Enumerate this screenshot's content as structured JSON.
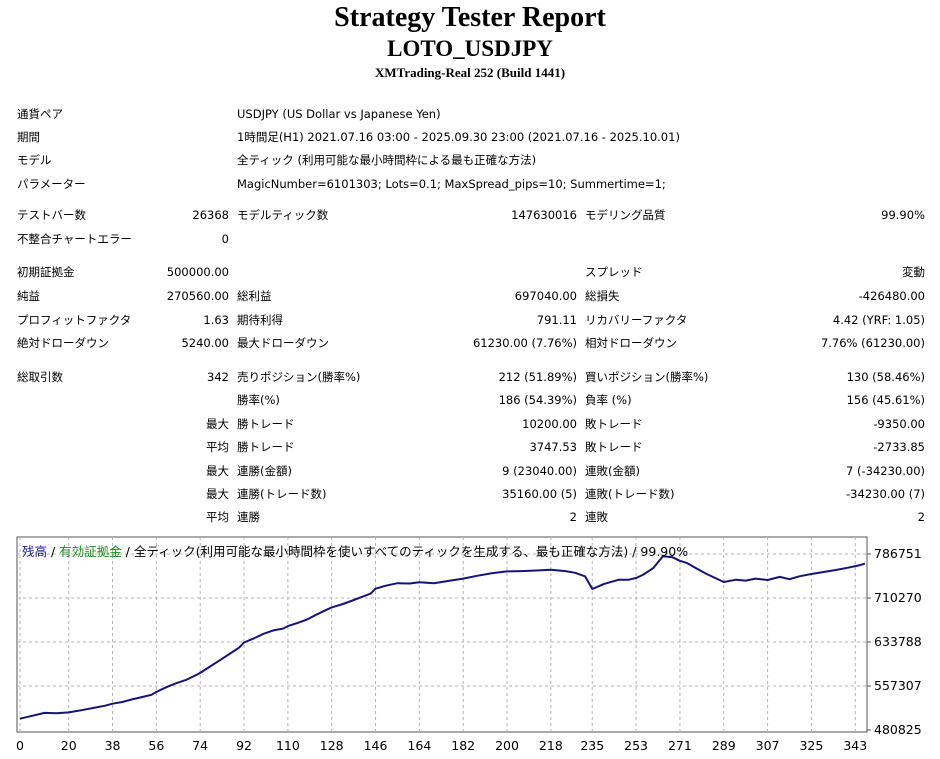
{
  "header": {
    "title": "Strategy Tester Report",
    "subtitle": "LOTO_USDJPY",
    "server": "XMTrading-Real 252 (Build 1441)"
  },
  "info": {
    "pair_label": "通貨ペア",
    "pair_value": "USDJPY (US Dollar vs Japanese Yen)",
    "period_label": "期間",
    "period_value": "1時間足(H1) 2021.07.16 03:00 - 2025.09.30 23:00 (2021.07.16 - 2025.10.01)",
    "model_label": "モデル",
    "model_value": "全ティック (利用可能な最小時間枠による最も正確な方法)",
    "params_label": "パラメーター",
    "params_value": "MagicNumber=6101303; Lots=0.1; MaxSpread_pips=10; Summertime=1;"
  },
  "stats": {
    "bars_label": "テストバー数",
    "bars_value": "26368",
    "ticks_label": "モデルティック数",
    "ticks_value": "147630016",
    "quality_label": "モデリング品質",
    "quality_value": "99.90%",
    "mismatch_label": "不整合チャートエラー",
    "mismatch_value": "0",
    "deposit_label": "初期証拠金",
    "deposit_value": "500000.00",
    "spread_label": "スプレッド",
    "spread_value": "変動",
    "net_label": "純益",
    "net_value": "270560.00",
    "gross_profit_label": "総利益",
    "gross_profit_value": "697040.00",
    "gross_loss_label": "総損失",
    "gross_loss_value": "-426480.00",
    "pf_label": "プロフィットファクタ",
    "pf_value": "1.63",
    "payoff_label": "期待利得",
    "payoff_value": "791.11",
    "recovery_label": "リカバリーファクタ",
    "recovery_value": "4.42 (YRF: 1.05)",
    "abs_dd_label": "絶対ドローダウン",
    "abs_dd_value": "5240.00",
    "max_dd_label": "最大ドローダウン",
    "max_dd_value": "61230.00 (7.76%)",
    "rel_dd_label": "相対ドローダウン",
    "rel_dd_value": "7.76% (61230.00)",
    "trades_label": "総取引数",
    "trades_value": "342",
    "short_label": "売りポジション(勝率%)",
    "short_value": "212 (51.89%)",
    "long_label": "買いポジション(勝率%)",
    "long_value": "130 (58.46%)",
    "win_rate_label": "勝率(%)",
    "win_rate_value": "186 (54.39%)",
    "loss_rate_label": "負率 (%)",
    "loss_rate_value": "156 (45.61%)",
    "max_word": "最大",
    "avg_word": "平均",
    "max_win_label": "勝トレード",
    "max_win_value": "10200.00",
    "max_loss_label": "敗トレード",
    "max_loss_value": "-9350.00",
    "avg_win_label": "勝トレード",
    "avg_win_value": "3747.53",
    "avg_loss_label": "敗トレード",
    "avg_loss_value": "-2733.85",
    "cons_wins_amt_label": "連勝(金額)",
    "cons_wins_amt_value": "9 (23040.00)",
    "cons_losses_amt_label": "連敗(金額)",
    "cons_losses_amt_value": "7 (-34230.00)",
    "cons_wins_cnt_label": "連勝(トレード数)",
    "cons_wins_cnt_value": "35160.00 (5)",
    "cons_losses_cnt_label": "連敗(トレード数)",
    "cons_losses_cnt_value": "-34230.00 (7)",
    "avg_cons_wins_label": "連勝",
    "avg_cons_wins_value": "2",
    "avg_cons_losses_label": "連敗",
    "avg_cons_losses_value": "2"
  },
  "chart_legend": {
    "balance": "残高",
    "sep1": " / ",
    "equity": "有効証拠金",
    "sep2": " / ",
    "desc": "全ティック(利用可能な最小時間枠を使いすべてのティックを生成する、最も正確な方法) / 99.90%"
  },
  "colors": {
    "balance_line": "#141478",
    "grid": "#b4b4b4",
    "legend_green": "#1f8a1f"
  },
  "chart_data": {
    "type": "line",
    "x_ticks": [
      "0",
      "20",
      "38",
      "56",
      "74",
      "92",
      "110",
      "128",
      "146",
      "164",
      "182",
      "200",
      "218",
      "235",
      "253",
      "271",
      "289",
      "307",
      "325",
      "343"
    ],
    "y_ticks": [
      "786751",
      "710270",
      "633788",
      "557307",
      "480825"
    ],
    "xlim": [
      0,
      347
    ],
    "ylim": [
      480825,
      786751
    ],
    "grid": true,
    "series": [
      {
        "x": [
          0,
          5,
          10,
          15,
          20,
          25,
          30,
          35,
          38,
          42,
          46,
          50,
          54,
          56,
          60,
          64,
          68,
          72,
          74,
          78,
          82,
          86,
          90,
          92,
          96,
          100,
          104,
          108,
          110,
          114,
          118,
          122,
          126,
          128,
          132,
          136,
          140,
          144,
          146,
          150,
          155,
          160,
          164,
          170,
          176,
          182,
          188,
          194,
          200,
          206,
          212,
          218,
          224,
          228,
          232,
          235,
          240,
          246,
          250,
          253,
          256,
          260,
          264,
          268,
          271,
          274,
          278,
          282,
          286,
          289,
          294,
          298,
          302,
          307,
          312,
          316,
          320,
          325,
          330,
          335,
          340,
          345,
          347
        ],
        "y": [
          500500,
          505500,
          510500,
          510000,
          511500,
          515000,
          519000,
          523000,
          526500,
          529500,
          534000,
          538000,
          542000,
          547000,
          555000,
          562000,
          567500,
          575500,
          580000,
          591000,
          602000,
          613000,
          624000,
          633000,
          640000,
          648000,
          654000,
          657000,
          661500,
          667000,
          673000,
          682000,
          690000,
          694000,
          699000,
          705000,
          711500,
          718000,
          726500,
          731500,
          736000,
          735500,
          737500,
          736000,
          740000,
          744000,
          749000,
          753500,
          756500,
          757000,
          758000,
          759500,
          757000,
          754000,
          748000,
          726000,
          735000,
          742000,
          742000,
          745000,
          751000,
          762000,
          783000,
          781000,
          775000,
          771000,
          761000,
          752000,
          744000,
          738000,
          742000,
          740500,
          744000,
          741500,
          747000,
          743000,
          748000,
          752000,
          755500,
          759000,
          763000,
          767500,
          770000
        ]
      }
    ]
  }
}
